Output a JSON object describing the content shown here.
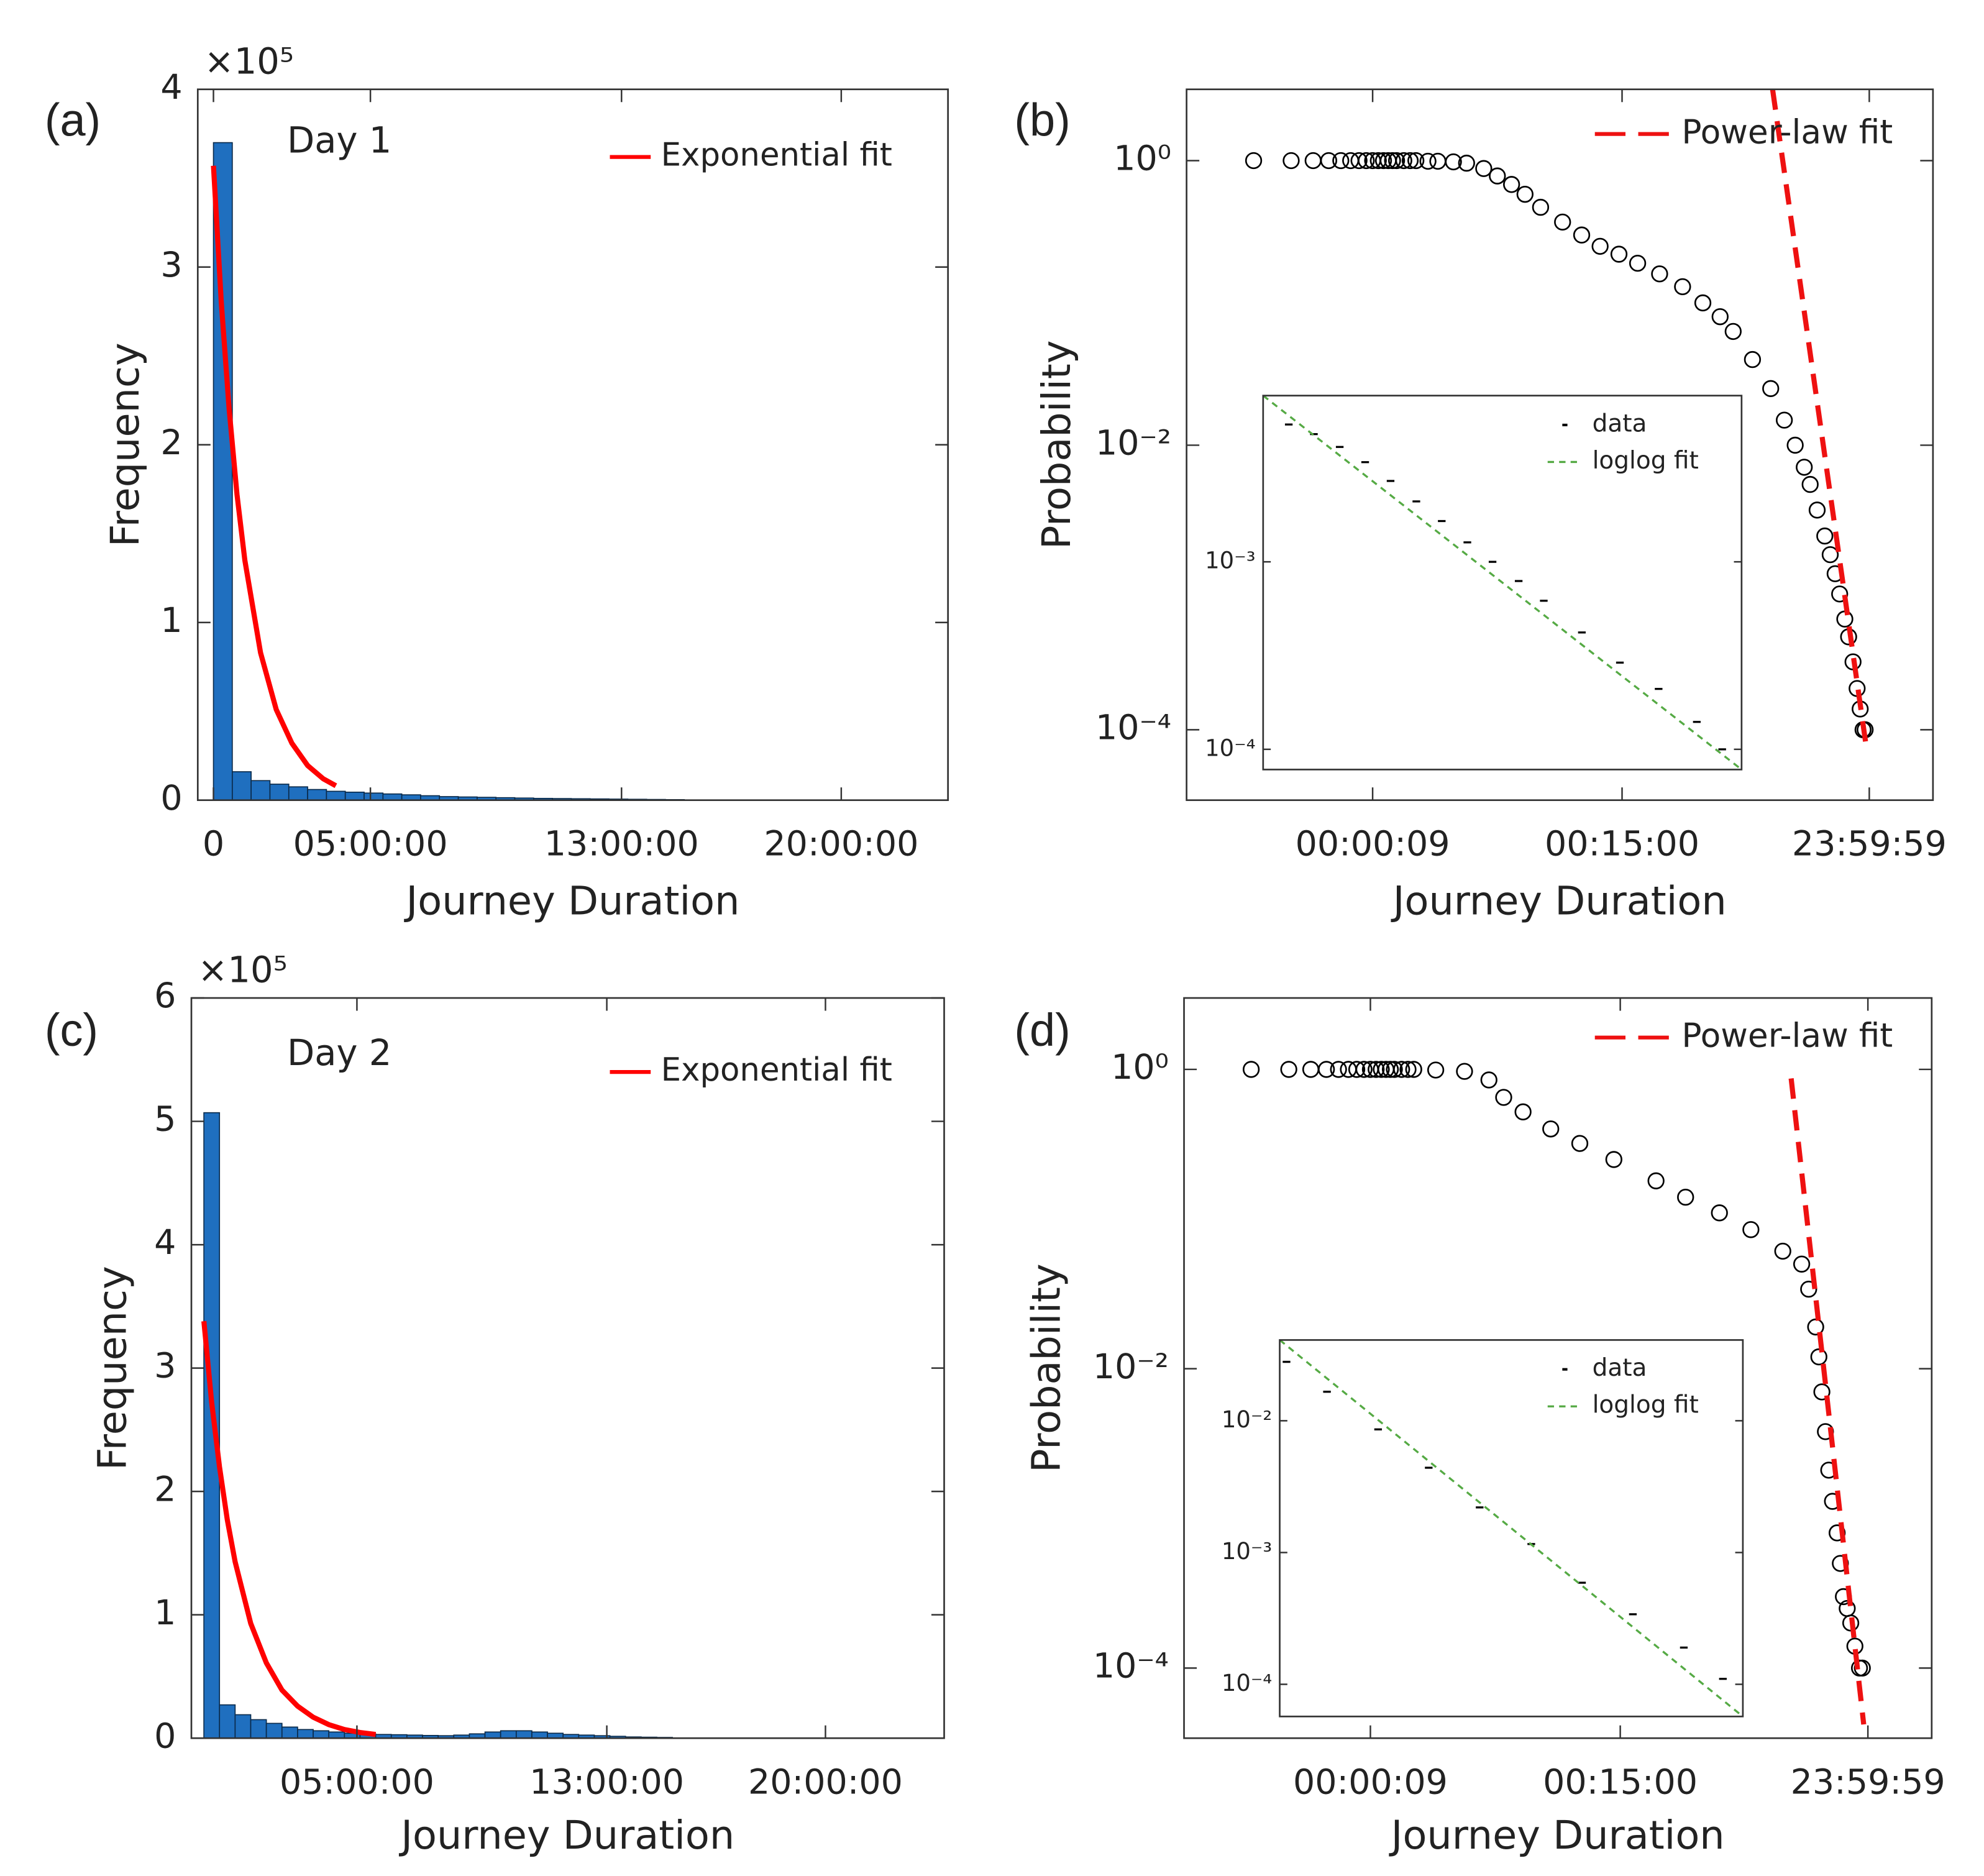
{
  "chart_data": [
    {
      "type": "histogram",
      "panel_label": "(a)",
      "annotation": "Day 1",
      "exponent_label": "×10⁵",
      "xlabel": "Journey Duration",
      "ylabel": "Frequency",
      "xlim": [
        -0.5,
        23.4
      ],
      "ylim": [
        0,
        4
      ],
      "xticks": [
        0,
        {
          "value": 5,
          "label": "05:00:00"
        },
        {
          "value": 13,
          "label": "13:00:00"
        },
        {
          "value": 20,
          "label": "20:00:00"
        }
      ],
      "yticks": [
        0,
        1,
        2,
        3,
        4
      ],
      "bins": [
        0,
        0.6,
        1.2,
        1.8,
        2.4,
        3,
        3.6,
        4.2,
        4.8,
        5.4,
        6,
        6.6,
        7.2,
        7.8,
        8.4,
        9,
        9.6,
        10.2,
        10.8,
        11.4,
        12,
        12.6,
        13.2,
        13.8,
        14.4,
        15
      ],
      "values": [
        3.7,
        0.16,
        0.11,
        0.09,
        0.075,
        0.06,
        0.05,
        0.045,
        0.04,
        0.035,
        0.03,
        0.025,
        0.02,
        0.018,
        0.016,
        0.014,
        0.012,
        0.01,
        0.009,
        0.008,
        0.007,
        0.006,
        0.005,
        0.004,
        0.003
      ],
      "color": "#1f6fbf",
      "legend": "upper right",
      "series": [
        {
          "name": "Exponential fit",
          "color": "#ff0000",
          "line_style": "solid",
          "x": [
            0,
            0.25,
            0.5,
            0.75,
            1,
            1.5,
            2,
            2.5,
            3,
            3.5,
            3.9
          ],
          "values": [
            3.57,
            2.8,
            2.2,
            1.72,
            1.35,
            0.83,
            0.51,
            0.32,
            0.195,
            0.12,
            0.081
          ]
        }
      ]
    },
    {
      "type": "scatter",
      "panel_label": "(b)",
      "xlabel": "Journey Duration",
      "ylabel": "Probability",
      "xscale": "log",
      "yscale": "log",
      "xlim": [
        0.29,
        280000
      ],
      "ylim": [
        3.2e-05,
        3.17
      ],
      "xticks": [
        {
          "value": 9,
          "label": "00:00:09"
        },
        {
          "value": 900,
          "label": "00:15:00"
        },
        {
          "value": 86399,
          "label": "23:59:59"
        }
      ],
      "yticks": [
        {
          "value": 1,
          "label": "10⁰"
        },
        {
          "value": 0.01,
          "label": "10⁻²"
        },
        {
          "value": 0.0001,
          "label": "10⁻⁴"
        }
      ],
      "legend": "upper right",
      "series": [
        {
          "color": "#000000",
          "marker": "circle",
          "x": [
            1,
            2,
            3,
            4,
            5,
            6,
            7,
            8,
            9,
            10,
            11,
            12,
            13,
            14,
            16,
            18,
            20,
            25,
            30,
            40,
            51,
            70,
            90,
            117,
            150,
            200,
            300,
            427,
            600,
            850,
            1200,
            1800,
            2750,
            4000,
            5500,
            7000,
            10000,
            14000,
            18000,
            22000,
            26000,
            29000,
            33000,
            38000,
            42000,
            46000,
            50000,
            55000,
            59000,
            64000,
            69000,
            73000,
            77000,
            80000
          ],
          "values": [
            1,
            1,
            1,
            1,
            1,
            1,
            1,
            1,
            1,
            1,
            1,
            1,
            1,
            1,
            1,
            1,
            1,
            0.99,
            0.99,
            0.98,
            0.96,
            0.88,
            0.78,
            0.68,
            0.58,
            0.47,
            0.37,
            0.3,
            0.25,
            0.22,
            0.19,
            0.16,
            0.13,
            0.1,
            0.08,
            0.063,
            0.04,
            0.025,
            0.015,
            0.01,
            0.007,
            0.0053,
            0.0035,
            0.0023,
            0.0017,
            0.00125,
            0.0009,
            0.0006,
            0.00045,
            0.0003,
            0.000195,
            0.00014,
            0.0001,
            0.0001
          ]
        },
        {
          "name": "Power-law fit",
          "color": "#ee1111",
          "line_style": "dashed",
          "x": [
            14500,
            83000
          ],
          "values": [
            3.16,
            6.9e-05
          ]
        }
      ]
    },
    {
      "type": "scatter",
      "xscale": "log",
      "yscale": "log",
      "xlim": [
        1,
        100
      ],
      "ylim": [
        7.8e-05,
        0.0077
      ],
      "yticks": [
        {
          "value": 0.001,
          "label": "10⁻³"
        },
        {
          "value": 0.0001,
          "label": "10⁻⁴"
        }
      ],
      "legend": "upper right",
      "series": [
        {
          "name": "data",
          "color": "#000000",
          "marker": "point",
          "x": [
            1.28,
            1.63,
            2.09,
            2.67,
            3.41,
            4.37,
            5.58,
            7.14,
            9.1,
            11.7,
            14.9,
            21.5,
            31,
            45,
            65,
            83
          ],
          "values": [
            0.0054,
            0.0048,
            0.0041,
            0.0034,
            0.0027,
            0.0021,
            0.00165,
            0.00127,
            0.001,
            0.00079,
            0.00062,
            0.00042,
            0.00029,
            0.00021,
            0.00014,
            0.0001
          ]
        },
        {
          "name": "loglog fit",
          "color": "#55aa44",
          "line_style": "dashed",
          "x": [
            1,
            100
          ],
          "values": [
            0.0077,
            7.8e-05
          ]
        }
      ]
    },
    {
      "type": "histogram",
      "panel_label": "(c)",
      "annotation": "Day 2",
      "exponent_label": "×10⁵",
      "xlabel": "Journey Duration",
      "ylabel": "Frequency",
      "xlim": [
        -0.3,
        23.8
      ],
      "ylim": [
        0,
        6
      ],
      "xticks": [
        {
          "value": 5,
          "label": "05:00:00"
        },
        {
          "value": 13,
          "label": "13:00:00"
        },
        {
          "value": 20,
          "label": "20:00:00"
        }
      ],
      "yticks": [
        0,
        1,
        2,
        3,
        4,
        5,
        6
      ],
      "bins": [
        0.1,
        0.6,
        1.1,
        1.6,
        2.1,
        2.6,
        3.1,
        3.6,
        4.1,
        4.6,
        5.1,
        5.6,
        6.1,
        6.6,
        7.1,
        7.6,
        8.1,
        8.6,
        9.1,
        9.6,
        10.1,
        10.6,
        11.1,
        11.6,
        12.1,
        12.6,
        13.1,
        13.6,
        14.1,
        14.6,
        15.1
      ],
      "values": [
        5.07,
        0.27,
        0.19,
        0.15,
        0.12,
        0.09,
        0.07,
        0.06,
        0.05,
        0.04,
        0.035,
        0.03,
        0.028,
        0.025,
        0.022,
        0.02,
        0.025,
        0.035,
        0.05,
        0.06,
        0.06,
        0.05,
        0.04,
        0.03,
        0.025,
        0.02,
        0.015,
        0.01,
        0.008,
        0.006
      ],
      "color": "#1f6fbf",
      "legend": "upper right",
      "series": [
        {
          "name": "Exponential fit",
          "color": "#ff0000",
          "line_style": "solid",
          "x": [
            0.1,
            0.35,
            0.6,
            0.85,
            1.1,
            1.6,
            2.1,
            2.6,
            3.1,
            3.6,
            4.1,
            4.6,
            5.1,
            5.6
          ],
          "values": [
            3.38,
            2.72,
            2.2,
            1.77,
            1.43,
            0.93,
            0.61,
            0.39,
            0.26,
            0.17,
            0.11,
            0.07,
            0.046,
            0.03
          ]
        }
      ]
    },
    {
      "type": "scatter",
      "panel_label": "(d)",
      "xlabel": "Journey Duration",
      "ylabel": "Probability",
      "xscale": "log",
      "yscale": "log",
      "xlim": [
        0.29,
        280000
      ],
      "ylim": [
        3.4e-05,
        3.0
      ],
      "xticks": [
        {
          "value": 9,
          "label": "00:00:09"
        },
        {
          "value": 900,
          "label": "00:15:00"
        },
        {
          "value": 86399,
          "label": "23:59:59"
        }
      ],
      "yticks": [
        {
          "value": 1,
          "label": "10⁰"
        },
        {
          "value": 0.01,
          "label": "10⁻²"
        },
        {
          "value": 0.0001,
          "label": "10⁻⁴"
        }
      ],
      "legend": "upper right",
      "series": [
        {
          "color": "#000000",
          "marker": "circle",
          "x": [
            1,
            2,
            3,
            4,
            5,
            6,
            7,
            8,
            9,
            10,
            11,
            12,
            13,
            14,
            16,
            18,
            20,
            30,
            51,
            80,
            105,
            150,
            250,
            427,
            800,
            1740,
            3000,
            5600,
            10000,
            18000,
            25500,
            29000,
            33000,
            35000,
            37000,
            39500,
            42000,
            45000,
            49000,
            52000,
            55000,
            59000,
            63000,
            68000,
            74000,
            78000
          ],
          "values": [
            1,
            1,
            1,
            1,
            1,
            1,
            1,
            1,
            1,
            1,
            1,
            1,
            1,
            1,
            1,
            1,
            1,
            0.99,
            0.97,
            0.85,
            0.65,
            0.52,
            0.4,
            0.32,
            0.25,
            0.18,
            0.14,
            0.11,
            0.085,
            0.061,
            0.05,
            0.034,
            0.019,
            0.012,
            0.007,
            0.0038,
            0.0021,
            0.0013,
            0.0008,
            0.0005,
            0.0003,
            0.00025,
            0.0002,
            0.00014,
            0.0001,
            0.0001
          ]
        },
        {
          "name": "Power-law fit",
          "color": "#ee1111",
          "line_style": "dashed",
          "x": [
            21000,
            80000
          ],
          "values": [
            0.87,
            4.2e-05
          ]
        }
      ]
    },
    {
      "type": "scatter",
      "xscale": "log",
      "yscale": "log",
      "xlim": [
        1,
        100
      ],
      "ylim": [
        5.7e-05,
        0.041
      ],
      "yticks": [
        {
          "value": 0.01,
          "label": "10⁻²"
        },
        {
          "value": 0.001,
          "label": "10⁻³"
        },
        {
          "value": 0.0001,
          "label": "10⁻⁴"
        }
      ],
      "legend": "upper right",
      "series": [
        {
          "name": "data",
          "color": "#000000",
          "marker": "point",
          "x": [
            1.07,
            1.6,
            2.66,
            4.4,
            7.3,
            12.2,
            20.2,
            33.5,
            55.6,
            82
          ],
          "values": [
            0.028,
            0.0166,
            0.0086,
            0.0044,
            0.0022,
            0.00116,
            0.00059,
            0.00034,
            0.00019,
            0.00011
          ]
        },
        {
          "name": "loglog fit",
          "color": "#55aa44",
          "line_style": "dashed",
          "x": [
            1,
            100
          ],
          "values": [
            0.041,
            5.7e-05
          ]
        }
      ]
    }
  ]
}
